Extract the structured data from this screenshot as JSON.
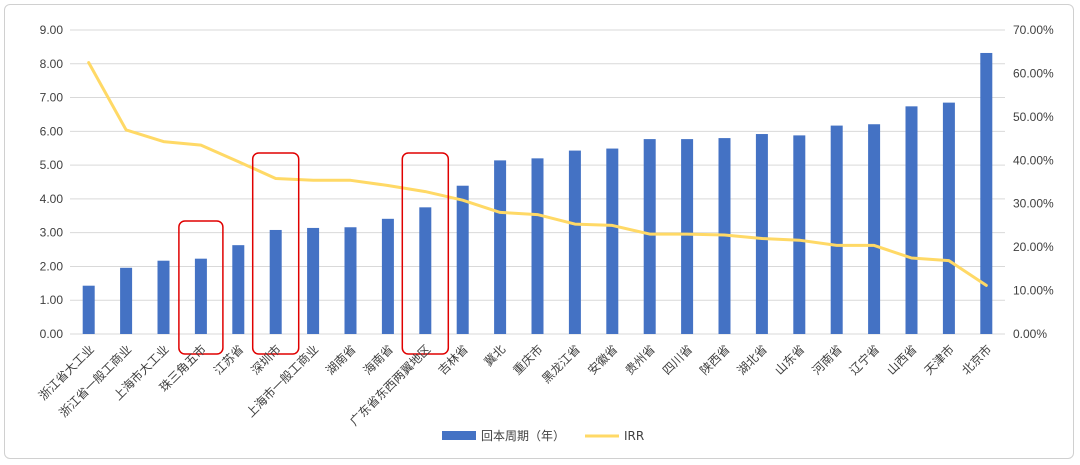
{
  "chart_data": {
    "type": "bar+line",
    "categories": [
      "浙江省大工业",
      "浙江省一般工商业",
      "上海市大工业",
      "珠三角五市",
      "江苏省",
      "深圳市",
      "上海市一般工商业",
      "湖南省",
      "海南省",
      "广东省东西两翼地区",
      "吉林省",
      "冀北",
      "重庆市",
      "黑龙江省",
      "安徽省",
      "贵州省",
      "四川省",
      "陕西省",
      "湖北省",
      "山东省",
      "河南省",
      "辽宁省",
      "山西省",
      "天津市",
      "北京市"
    ],
    "series": [
      {
        "name": "回本周期（年）",
        "type": "bar",
        "axis": "left",
        "color": "#4472C4",
        "values": [
          1.43,
          1.96,
          2.17,
          2.23,
          2.63,
          3.08,
          3.14,
          3.16,
          3.41,
          3.75,
          4.39,
          5.14,
          5.2,
          5.43,
          5.49,
          5.77,
          5.77,
          5.8,
          5.92,
          5.88,
          6.17,
          6.21,
          6.74,
          6.85,
          8.32
        ]
      },
      {
        "name": "IRR",
        "type": "line",
        "axis": "right",
        "color": "#FFD966",
        "values": [
          0.625,
          0.47,
          0.443,
          0.435,
          0.397,
          0.358,
          0.354,
          0.354,
          0.342,
          0.328,
          0.308,
          0.28,
          0.275,
          0.253,
          0.25,
          0.23,
          0.23,
          0.228,
          0.22,
          0.216,
          0.204,
          0.204,
          0.175,
          0.169,
          0.112
        ]
      }
    ],
    "y_left": {
      "min": 0,
      "max": 9,
      "step": 1,
      "tick_labels": [
        "0.00",
        "1.00",
        "2.00",
        "3.00",
        "4.00",
        "5.00",
        "6.00",
        "7.00",
        "8.00",
        "9.00"
      ]
    },
    "y_right": {
      "min": 0,
      "max": 0.7,
      "step": 0.1,
      "tick_labels": [
        "0.00%",
        "10.00%",
        "20.00%",
        "30.00%",
        "40.00%",
        "50.00%",
        "60.00%",
        "70.00%"
      ]
    },
    "grid": true,
    "legend_position": "bottom",
    "highlighted_categories": [
      "珠三角五市",
      "深圳市",
      "广东省东西两翼地区"
    ],
    "highlight_color": "#E00000"
  }
}
